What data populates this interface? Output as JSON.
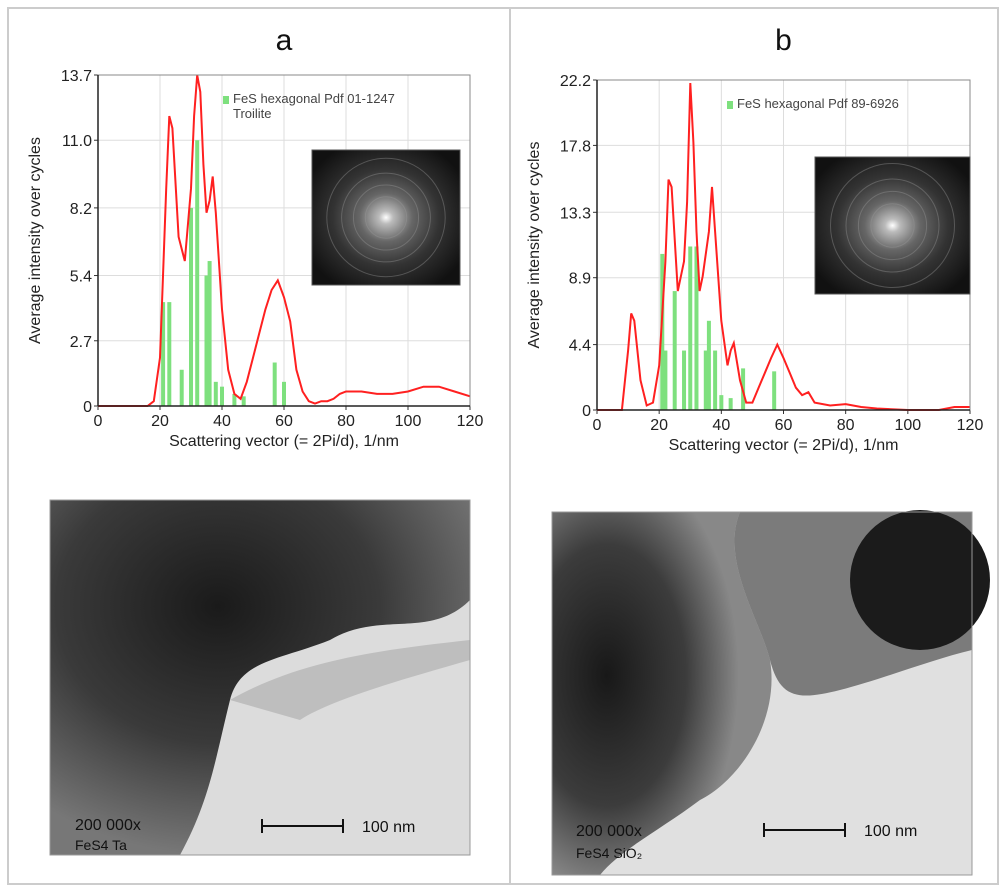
{
  "chart_data": [
    {
      "type": "line",
      "title": "a",
      "xlabel": "Scattering vector (= 2Pi/d), 1/nm",
      "ylabel": "Average intensity over cycles",
      "xlim": [
        0,
        120
      ],
      "xticks": [
        0,
        20,
        40,
        60,
        80,
        100,
        120
      ],
      "ylim": [
        0,
        13.7
      ],
      "yticks": [
        0,
        2.7,
        5.4,
        8.2,
        {
          "value": 11,
          "label": "11.0"
        },
        13.7
      ],
      "grid": true,
      "legend": "upper right",
      "series": [
        {
          "type": "bar",
          "name": "FeS hexagonal Pdf 01-1247 Troilite",
          "color": "#7ee07e",
          "x": [
            21,
            23,
            27,
            30,
            32,
            35,
            36,
            38,
            40,
            44,
            47,
            57,
            60
          ],
          "values": [
            4.3,
            4.3,
            1.5,
            8.2,
            11,
            5.4,
            6,
            1,
            0.8,
            0.5,
            0.4,
            1.8,
            1
          ]
        },
        {
          "type": "line",
          "color": "#ff2020",
          "x": [
            0,
            16,
            18,
            20,
            22,
            23,
            24,
            26,
            28,
            30,
            31,
            32,
            33,
            34,
            35,
            36,
            37,
            38,
            40,
            42,
            44,
            46,
            48,
            50,
            52,
            54,
            56,
            58,
            60,
            62,
            64,
            66,
            68,
            70,
            72,
            74,
            76,
            78,
            80,
            85,
            90,
            95,
            100,
            105,
            110,
            115,
            120
          ],
          "values": [
            0,
            0,
            0.2,
            2,
            9,
            12,
            11.5,
            7,
            6,
            9,
            12,
            13.7,
            13,
            10,
            8,
            8.5,
            9.5,
            8,
            4,
            1.5,
            0.5,
            0.3,
            1,
            2,
            3,
            4,
            4.8,
            5.2,
            4.5,
            3.5,
            1.5,
            0.6,
            0.2,
            0.1,
            0.2,
            0.2,
            0.3,
            0.5,
            0.6,
            0.6,
            0.5,
            0.5,
            0.6,
            0.8,
            0.8,
            0.6,
            0.4
          ]
        }
      ]
    },
    {
      "type": "line",
      "title": "b",
      "xlabel": "Scattering vector (= 2Pi/d), 1/nm",
      "ylabel": "Average intensity over cycles",
      "xlim": [
        0,
        120
      ],
      "xticks": [
        0,
        20,
        40,
        60,
        80,
        100,
        120
      ],
      "ylim": [
        0,
        22.2
      ],
      "yticks": [
        0,
        4.4,
        8.9,
        13.3,
        17.8,
        22.2
      ],
      "grid": true,
      "legend": "upper right",
      "series": [
        {
          "type": "bar",
          "name": "FeS hexagonal Pdf 89-6926",
          "color": "#7ee07e",
          "x": [
            21,
            22,
            25,
            28,
            30,
            32,
            35,
            36,
            38,
            40,
            43,
            47,
            57
          ],
          "values": [
            10.5,
            4,
            8,
            4,
            11,
            11,
            4,
            6,
            4,
            1,
            0.8,
            2.8,
            2.6
          ]
        },
        {
          "type": "line",
          "color": "#ff2020",
          "x": [
            0,
            8,
            10,
            11,
            12,
            14,
            16,
            18,
            20,
            22,
            23,
            24,
            26,
            28,
            29,
            30,
            31,
            32,
            33,
            34,
            36,
            37,
            38,
            40,
            42,
            43,
            44,
            46,
            48,
            50,
            52,
            54,
            56,
            58,
            60,
            62,
            64,
            66,
            68,
            70,
            75,
            80,
            85,
            90,
            100,
            110,
            115,
            120
          ],
          "values": [
            0,
            0,
            4,
            6.5,
            6,
            2,
            0.3,
            0.5,
            3,
            10,
            15.5,
            15,
            8,
            10,
            14,
            22,
            18,
            12,
            8,
            9,
            12,
            15,
            12,
            6,
            3,
            4,
            4.5,
            2,
            0.5,
            0.5,
            1.5,
            2.5,
            3.5,
            4.4,
            3.5,
            2.5,
            1.5,
            1,
            1.2,
            0.5,
            0.3,
            0.4,
            0.2,
            0.1,
            0,
            0,
            0.2,
            0.2
          ]
        }
      ]
    }
  ],
  "micrographs": [
    {
      "magnification": "200 000x",
      "sample": "FeS4 Ta",
      "scale": "100 nm"
    },
    {
      "magnification": "200 000x",
      "sample": "FeS4 SiO₂",
      "scale": "100 nm"
    }
  ]
}
